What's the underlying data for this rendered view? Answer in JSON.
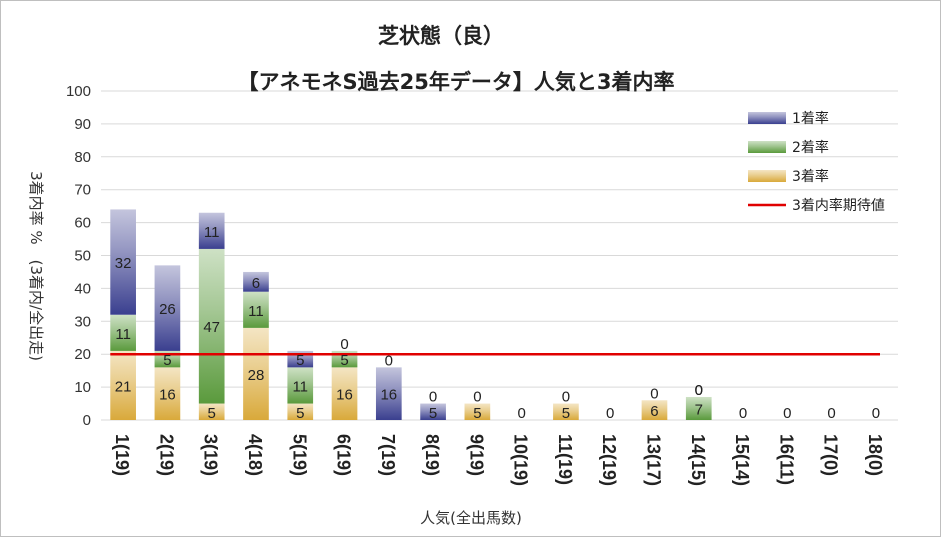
{
  "chart_data": {
    "type": "bar",
    "title": "芝状態（良）",
    "subtitle": "【アネモネS過去25年データ】人気と3着内率",
    "xlabel": "人気(全出馬数)",
    "ylabel": "3着内率 %　(3着内/全出走)",
    "ylim": [
      0,
      100
    ],
    "yticks": [
      0,
      10,
      20,
      30,
      40,
      50,
      60,
      70,
      80,
      90,
      100
    ],
    "grid": true,
    "legend_position": "top-right",
    "categories": [
      "1(19)",
      "2(19)",
      "3(19)",
      "4(18)",
      "5(19)",
      "6(19)",
      "7(19)",
      "8(19)",
      "9(19)",
      "10(19)",
      "11(19)",
      "12(19)",
      "13(17)",
      "14(15)",
      "15(14)",
      "16(11)",
      "17(0)",
      "18(0)"
    ],
    "series": [
      {
        "name": "3着率",
        "color": "#d9a93a",
        "values": [
          21,
          16,
          5,
          28,
          5,
          16,
          0,
          0,
          5,
          0,
          5,
          0,
          6,
          0,
          0,
          0,
          0,
          0
        ]
      },
      {
        "name": "2着率",
        "color": "#5a9a3c",
        "values": [
          11,
          5,
          47,
          11,
          11,
          5,
          0,
          0,
          0,
          0,
          0,
          0,
          0,
          7,
          0,
          0,
          0,
          0
        ]
      },
      {
        "name": "1着率",
        "color": "#3a3f8f",
        "values": [
          32,
          26,
          11,
          6,
          5,
          0,
          16,
          5,
          0,
          0,
          0,
          0,
          0,
          0,
          0,
          0,
          0,
          0
        ]
      }
    ],
    "labels": {
      "3着率": [
        "21",
        "16",
        "5",
        "28",
        "5",
        "16",
        "0",
        "0",
        "5",
        "",
        "5",
        "",
        "6",
        "0",
        "",
        "",
        "",
        ""
      ],
      "2着率": [
        "11",
        "5",
        "47",
        "11",
        "11",
        "5",
        "",
        "",
        "",
        "",
        "",
        "",
        "",
        "7",
        "",
        "",
        "",
        ""
      ],
      "1着率": [
        "32",
        "26",
        "11",
        "6",
        "5",
        "0",
        "16",
        "5",
        "0",
        "0",
        "0",
        "0",
        "0",
        "0",
        "0",
        "0",
        "0",
        "0"
      ]
    },
    "reference_line": {
      "name": "3着内率期待値",
      "value": 20,
      "color": "#e00000"
    }
  }
}
